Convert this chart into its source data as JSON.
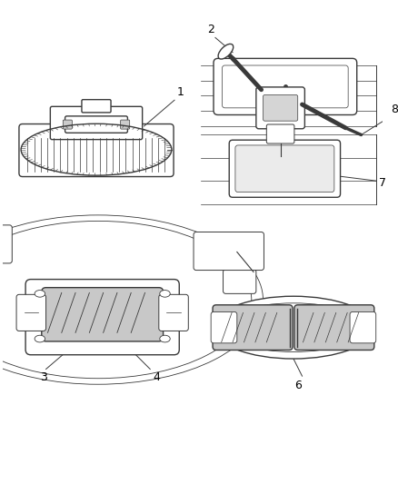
{
  "background_color": "#ffffff",
  "line_color": "#3a3a3a",
  "label_color": "#000000",
  "fig_width": 4.38,
  "fig_height": 5.33,
  "dpi": 100
}
